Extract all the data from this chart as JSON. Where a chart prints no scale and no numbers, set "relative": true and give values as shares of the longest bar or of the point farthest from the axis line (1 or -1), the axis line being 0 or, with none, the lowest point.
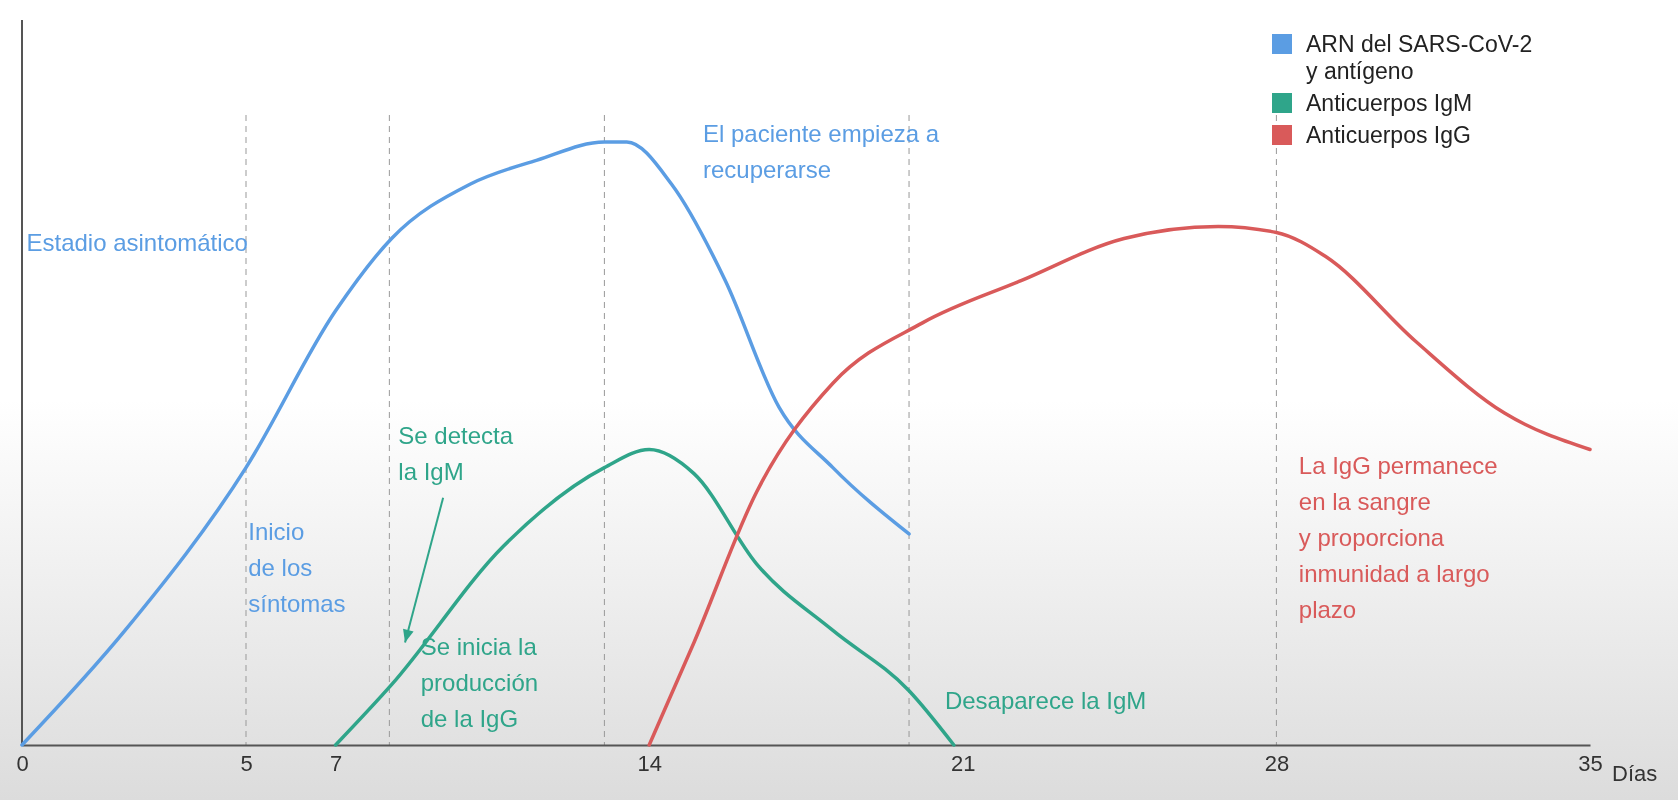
{
  "chart_data": {
    "type": "line",
    "relative": true,
    "xlabel": "Días",
    "xlim": [
      0,
      35
    ],
    "xticks": [
      0,
      5,
      7,
      14,
      21,
      28,
      35
    ],
    "legend": "top right",
    "line_style": "solid",
    "marker": "none",
    "series": [
      {
        "name": "ARN del SARS-CoV-2 y antígeno",
        "color": "#5b9de3",
        "x": [
          0,
          2.3,
          5,
          7,
          8.25,
          10,
          11.5,
          13,
          13.5,
          14.5,
          15.7,
          16.9,
          18.1,
          19.8
        ],
        "values": [
          0,
          0.19,
          0.46,
          0.72,
          0.84,
          0.93,
          0.97,
          1,
          1,
          0.93,
          0.77,
          0.56,
          0.46,
          0.35
        ]
      },
      {
        "name": "Anticuerpos IgM",
        "color": "#2fa58a",
        "x": [
          7,
          8.25,
          10.75,
          13,
          14,
          15,
          16.4,
          18.1,
          19.8,
          20.8
        ],
        "values": [
          0,
          0.1,
          0.33,
          0.46,
          0.49,
          0.45,
          0.3,
          0.19,
          0.09,
          0
        ]
      },
      {
        "name": "Anticuerpos IgG",
        "color": "#d95a5a",
        "x": [
          14,
          15,
          16.4,
          18.1,
          20.1,
          22.3,
          24.6,
          26.7,
          28,
          29.1,
          31.1,
          33.1,
          35
        ],
        "values": [
          0,
          0.17,
          0.42,
          0.6,
          0.7,
          0.77,
          0.84,
          0.86,
          0.85,
          0.81,
          0.67,
          0.55,
          0.49
        ]
      }
    ],
    "ref_lines": [
      {
        "axis": "x",
        "value": 5,
        "color": "#999999",
        "line_style": "dashed"
      },
      {
        "axis": "x",
        "value": 8.2,
        "color": "#999999",
        "line_style": "dashed"
      },
      {
        "axis": "x",
        "value": 13,
        "color": "#999999",
        "line_style": "dashed"
      },
      {
        "axis": "x",
        "value": 19.8,
        "color": "#999999",
        "line_style": "dashed"
      },
      {
        "axis": "x",
        "value": 28,
        "color": "#999999",
        "line_style": "dashed"
      }
    ],
    "annotations": [
      "Estadio asintomático",
      "Inicio\nde los\nsíntomas",
      "Se detecta\nla IgM",
      "Se inicia la\nproducción\nde la IgG",
      "El paciente empieza a\nrecuperarse",
      "Desaparece la IgM",
      "La IgG permanece\nen la sangre\ny proporciona\ninmunidad a largo\nplazo"
    ]
  }
}
